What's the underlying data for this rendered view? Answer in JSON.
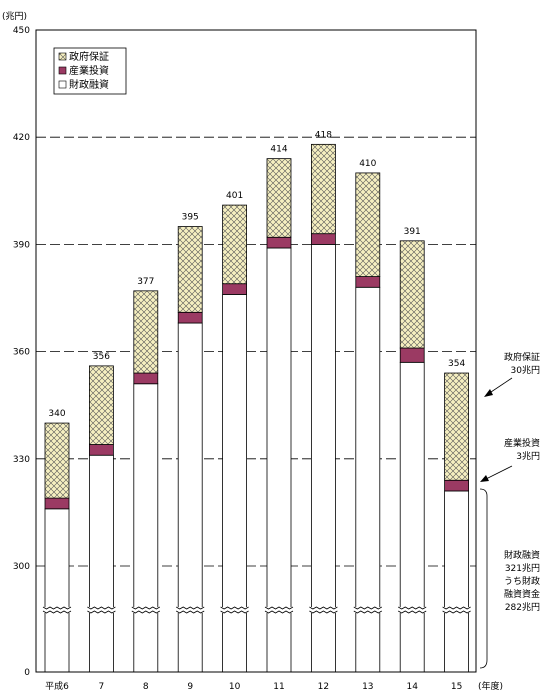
{
  "chart_data": {
    "type": "bar",
    "stacked": true,
    "y_unit_label": "(兆円)",
    "x_unit_label": "(年度)",
    "categories": [
      "平成6",
      "7",
      "8",
      "9",
      "10",
      "11",
      "12",
      "13",
      "14",
      "15"
    ],
    "series": [
      {
        "name": "財政融資",
        "values": [
          316,
          331,
          351,
          368,
          376,
          389,
          390,
          378,
          357,
          321
        ]
      },
      {
        "name": "産業投資",
        "values": [
          3,
          3,
          3,
          3,
          3,
          3,
          3,
          3,
          4,
          3
        ]
      },
      {
        "name": "政府保証",
        "values": [
          21,
          22,
          23,
          24,
          22,
          22,
          25,
          29,
          30,
          30
        ]
      }
    ],
    "totals": [
      "340",
      "356",
      "377",
      "395",
      "401",
      "414",
      "418",
      "410",
      "391",
      "354"
    ],
    "y_ticks": [
      "0",
      "300",
      "330",
      "360",
      "390",
      "420",
      "450"
    ],
    "ylim": [
      0,
      450
    ],
    "axis_break": true,
    "legend_position": "top-left",
    "grid": "dashed horizontal lines at 300, 330, 360, 390, 420",
    "colors": {
      "政府保証": "#f5efc0",
      "産業投資": "#9b3a63",
      "財政融資": "#ffffff"
    }
  },
  "legend": {
    "items": [
      {
        "label": "政府保証",
        "swatch": "hatch"
      },
      {
        "label": "産業投資",
        "swatch": "#9b3a63"
      },
      {
        "label": "財政融資",
        "swatch": "#ffffff"
      }
    ]
  },
  "annotations": {
    "gov": {
      "line1": "政府保証",
      "line2": "30兆円"
    },
    "ind": {
      "line1": "産業投資",
      "line2": "3兆円"
    },
    "fiscal": {
      "line1": "財政融資",
      "line2": "321兆円",
      "line3": "うち財政",
      "line4": "融資資金",
      "line5": "282兆円"
    }
  }
}
